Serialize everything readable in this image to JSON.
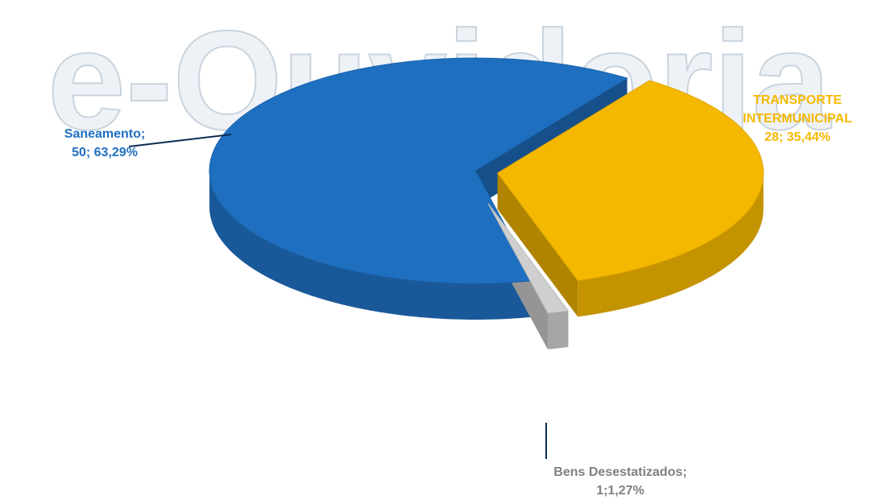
{
  "watermark": "e-Ouvidoria",
  "chart_data": {
    "type": "pie",
    "categories": [
      "Saneamento;",
      "TRANSPORTE INTERMUNICIPAL",
      "Bens Desestatizados;"
    ],
    "values": [
      50,
      28,
      1
    ],
    "value_labels": [
      "50; 63,29%",
      "28; 35,44%",
      "1;1,27%"
    ],
    "colors": [
      "#1f6fc0",
      "#f5b800",
      "#cfcfcf"
    ]
  }
}
